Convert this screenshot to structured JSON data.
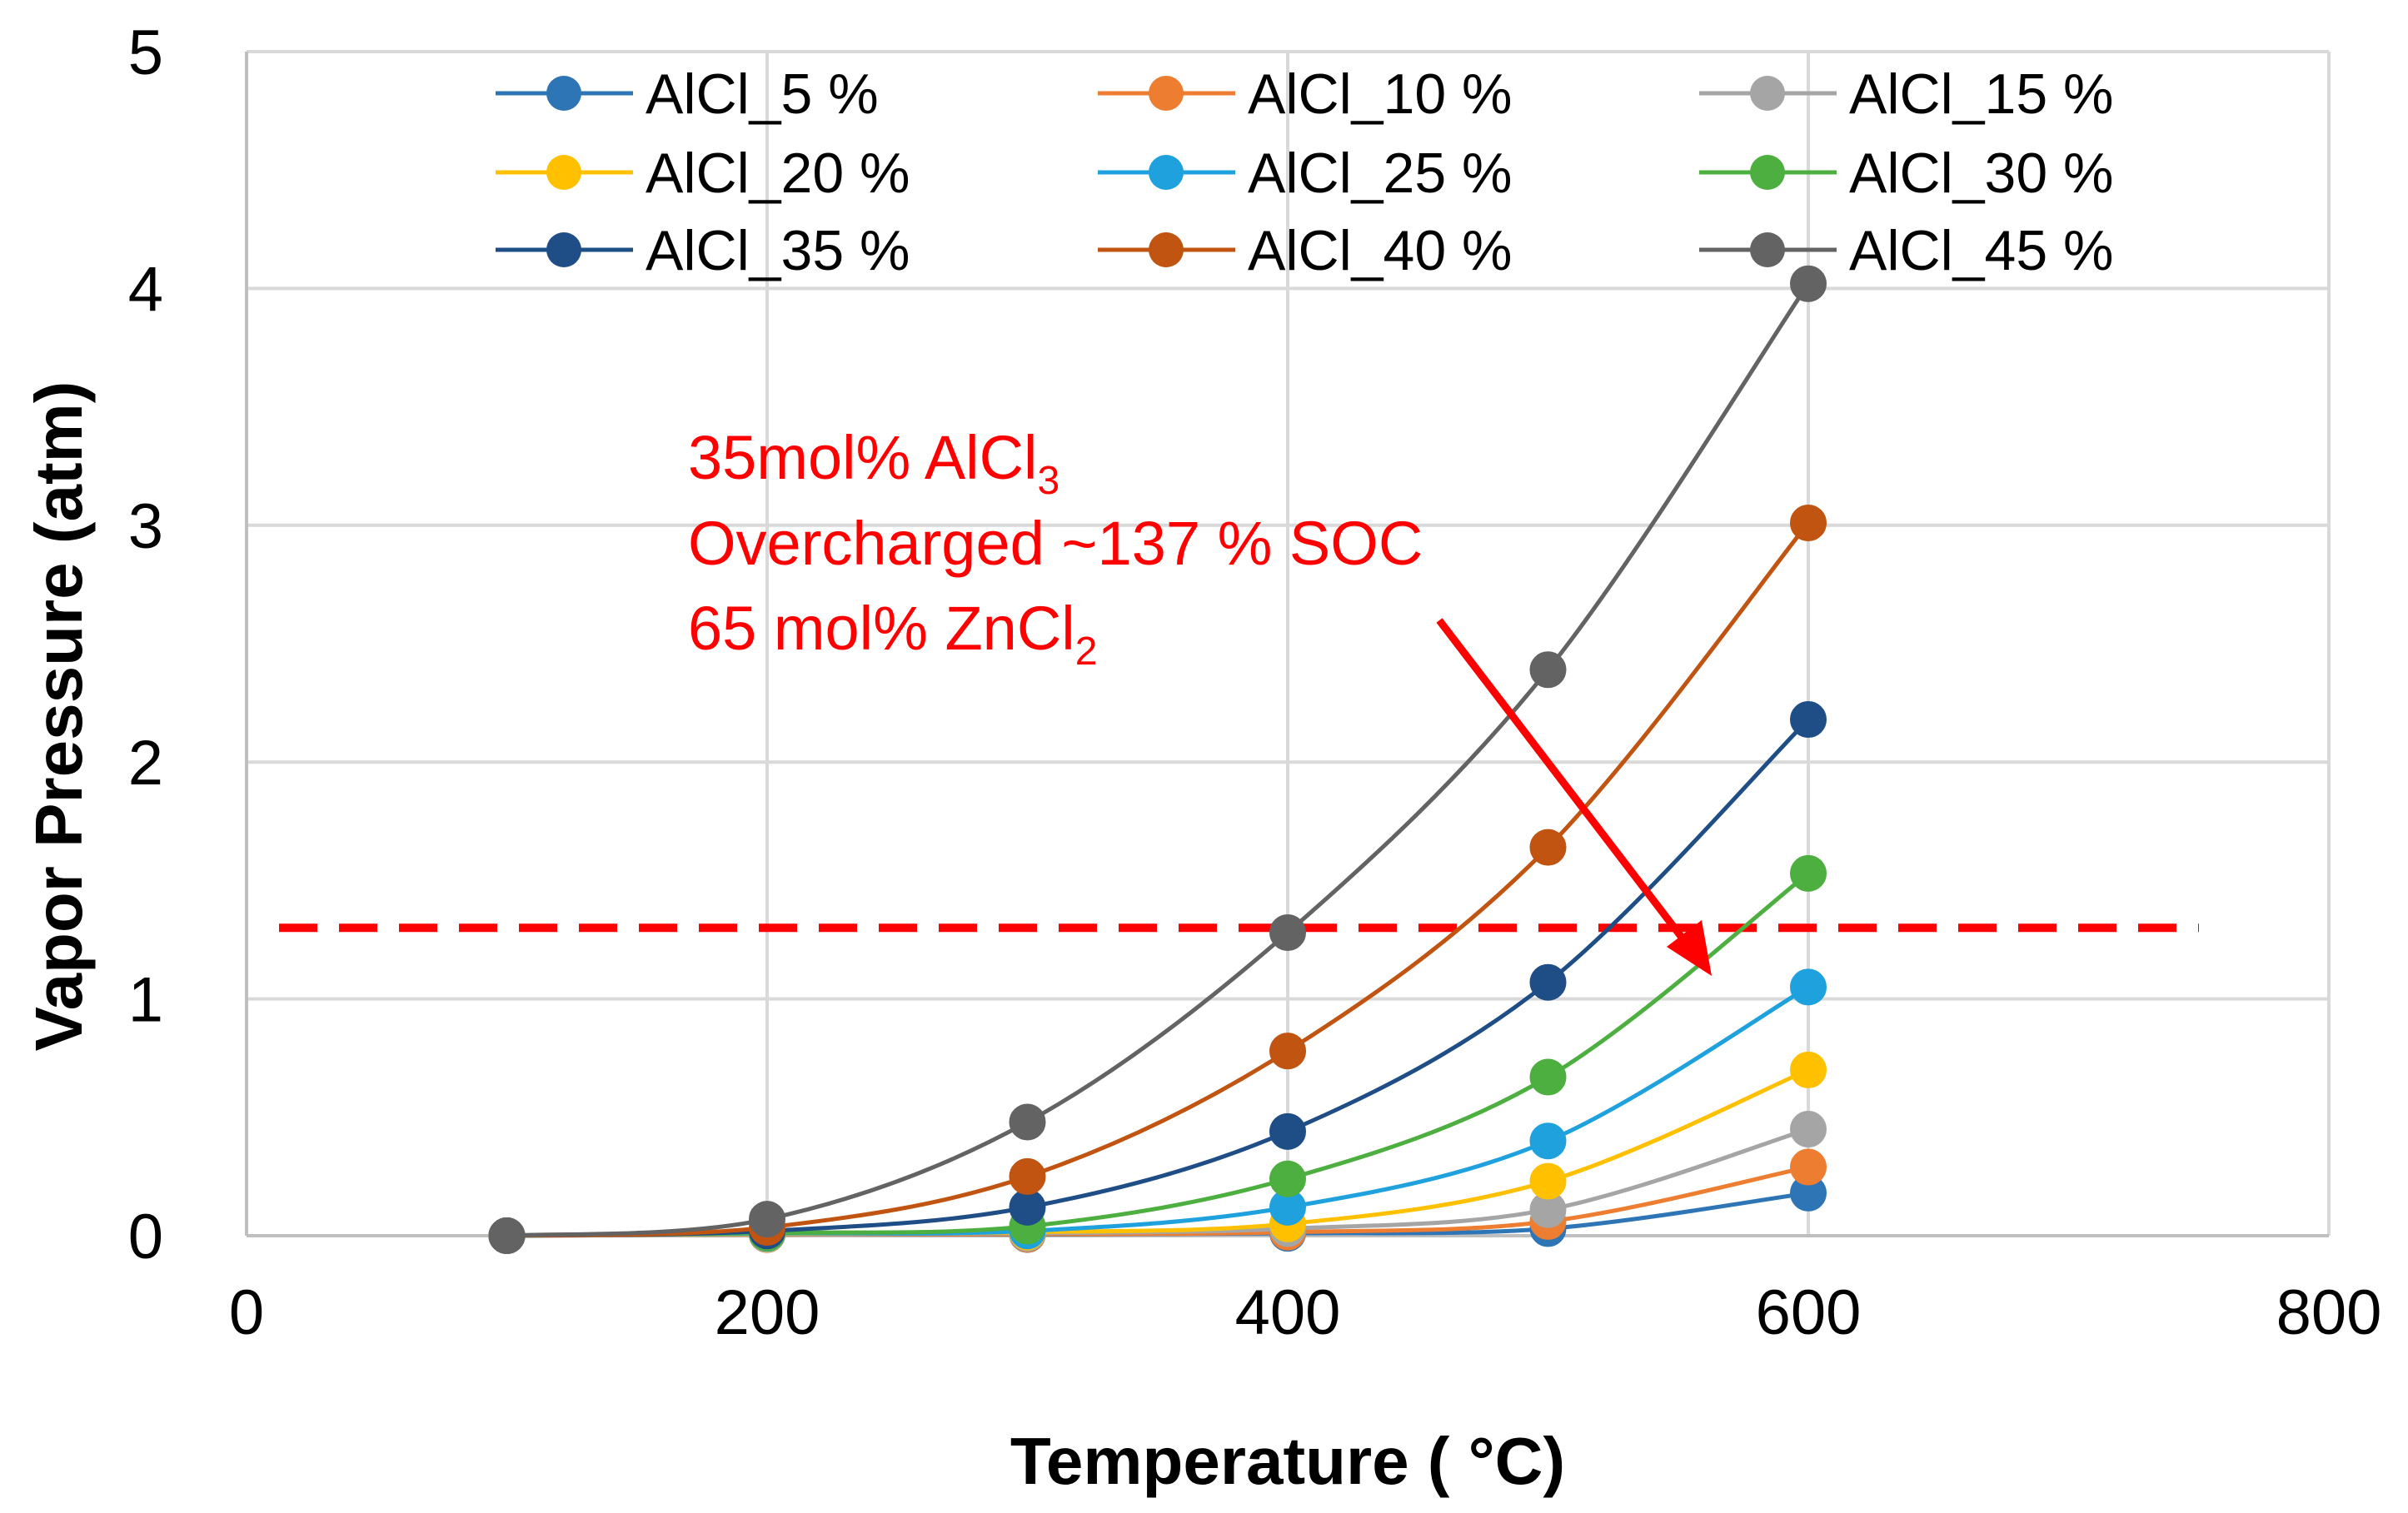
{
  "chart_data": {
    "type": "line",
    "title": "",
    "xlabel": "Temperature ( °C)",
    "ylabel": "Vapor Pressure (atm)",
    "xlim": [
      0,
      800
    ],
    "ylim": [
      0,
      5
    ],
    "xticks": [
      "0",
      "200",
      "400",
      "600",
      "800"
    ],
    "yticks": [
      "0",
      "1",
      "2",
      "3",
      "4",
      "5"
    ],
    "grid": true,
    "legend_position": "top",
    "x": [
      100,
      200,
      300,
      400,
      500,
      600
    ],
    "series": [
      {
        "name": "AlCl_5 %",
        "color": "#2E75B6",
        "values": [
          0,
          0.005,
          0.005,
          0.01,
          0.03,
          0.18
        ]
      },
      {
        "name": "AlCl_10 %",
        "color": "#ED7D31",
        "values": [
          0,
          0.005,
          0.006,
          0.015,
          0.06,
          0.29
        ]
      },
      {
        "name": "AlCl_15 %",
        "color": "#A5A5A5",
        "values": [
          0,
          0.006,
          0.01,
          0.03,
          0.11,
          0.45
        ]
      },
      {
        "name": "AlCl_20 %",
        "color": "#FFC000",
        "values": [
          0,
          0.008,
          0.015,
          0.05,
          0.23,
          0.7
        ]
      },
      {
        "name": "AlCl_25 %",
        "color": "#1FA1DE",
        "values": [
          0,
          0.01,
          0.02,
          0.12,
          0.4,
          1.05
        ]
      },
      {
        "name": "AlCl_30 %",
        "color": "#4CAF3F",
        "values": [
          0,
          0.012,
          0.04,
          0.24,
          0.67,
          1.53
        ]
      },
      {
        "name": "AlCl_35 %",
        "color": "#1F4E87",
        "values": [
          0,
          0.02,
          0.12,
          0.44,
          1.07,
          2.18
        ]
      },
      {
        "name": "AlCl_40 %",
        "color": "#C05410",
        "values": [
          0,
          0.035,
          0.25,
          0.78,
          1.64,
          3.01
        ]
      },
      {
        "name": "AlCl_45 %",
        "color": "#636363",
        "values": [
          0,
          0.07,
          0.48,
          1.28,
          2.39,
          4.02
        ]
      }
    ],
    "reference_line": {
      "y": 1.3,
      "color": "#FF0000",
      "style": "dashed"
    },
    "annotation": {
      "color": "#FF0000",
      "line1_main": "35mol% AlCl",
      "line1_sub": "3",
      "line2": "Overcharged ~137 % SOC",
      "line3_main": "65 mol% ZnCl",
      "line3_sub": "2"
    }
  }
}
